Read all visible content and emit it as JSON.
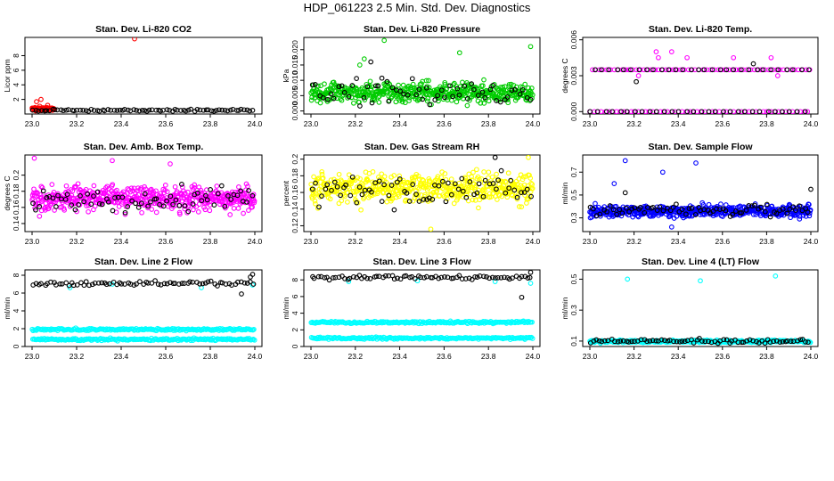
{
  "page": {
    "title": "HDP_061223  2.5 Min. Std. Dev. Diagnostics"
  },
  "chart_data": [
    {
      "id": "co2",
      "type": "scatter",
      "title": "Stan. Dev. Li-820 CO2",
      "xlabel": "",
      "ylabel": "Licor ppm",
      "xlim": [
        23.0,
        24.0
      ],
      "ylim": [
        0,
        10.5
      ],
      "xticks": [
        "23.0",
        "23.2",
        "23.4",
        "23.6",
        "23.8",
        "24.0"
      ],
      "yticks": [
        2,
        4,
        6,
        8
      ],
      "series": [
        {
          "name": "aux",
          "color": "#ff0000",
          "base": 0.7,
          "noise": 0.25,
          "n": 70,
          "x_end": 23.1,
          "outliers": [
            [
              23.46,
              10.3
            ],
            [
              23.02,
              1.7
            ],
            [
              23.04,
              2.0
            ],
            [
              23.07,
              1.2
            ]
          ]
        },
        {
          "name": "main",
          "color": "#000000",
          "base": 0.5,
          "noise": 0.15,
          "n": 80,
          "outliers": []
        }
      ]
    },
    {
      "id": "pressure",
      "type": "scatter",
      "title": "Stan. Dev. Li-820 Pressure",
      "xlabel": "",
      "ylabel": "kPa",
      "xlim": [
        23.0,
        24.0
      ],
      "ylim": [
        -0.001,
        0.024
      ],
      "xticks": [
        "23.0",
        "23.2",
        "23.4",
        "23.6",
        "23.8",
        "24.0"
      ],
      "yticks": [
        0.0,
        0.005,
        0.01,
        0.015,
        0.02
      ],
      "series": [
        {
          "name": "aux",
          "color": "#00cc00",
          "base": 0.006,
          "noise": 0.003,
          "n": 500,
          "outliers": [
            [
              23.33,
              0.023
            ],
            [
              23.67,
              0.019
            ],
            [
              23.99,
              0.021
            ],
            [
              23.22,
              0.015
            ],
            [
              23.24,
              0.017
            ]
          ]
        },
        {
          "name": "main",
          "color": "#000000",
          "base": 0.006,
          "noise": 0.004,
          "n": 60,
          "outliers": [
            [
              23.27,
              0.016
            ]
          ]
        }
      ]
    },
    {
      "id": "temp820",
      "type": "scatter",
      "title": "Stan. Dev. Li-820 Temp.",
      "xlabel": "",
      "ylabel": "degrees C",
      "xlim": [
        23.0,
        24.0
      ],
      "ylim": [
        -0.0002,
        0.0062
      ],
      "xticks": [
        "23.0",
        "23.2",
        "23.4",
        "23.6",
        "23.8",
        "24.0"
      ],
      "yticks": [
        0.0,
        0.003,
        0.006
      ],
      "series": [
        {
          "name": "aux",
          "color": "#ff00ff",
          "base": 0.0,
          "noise": 0.0,
          "n": 120,
          "levels": [
            0.0,
            0.0035
          ],
          "outliers": [
            [
              23.3,
              0.005
            ],
            [
              23.37,
              0.005
            ],
            [
              23.31,
              0.0045
            ],
            [
              23.44,
              0.0045
            ],
            [
              23.65,
              0.0045
            ],
            [
              23.82,
              0.0045
            ],
            [
              23.85,
              0.003
            ],
            [
              23.22,
              0.003
            ]
          ]
        },
        {
          "name": "main",
          "color": "#000000",
          "base": 0.0,
          "noise": 0.0,
          "n": 60,
          "levels": [
            0.0,
            0.0035
          ],
          "outliers": [
            [
              23.21,
              0.0025
            ],
            [
              23.74,
              0.004
            ]
          ]
        }
      ]
    },
    {
      "id": "ambbox",
      "type": "scatter",
      "title": "Stan. Dev. Amb. Box Temp.",
      "xlabel": "",
      "ylabel": "degrees C",
      "xlim": [
        23.0,
        24.0
      ],
      "ylim": [
        0.13,
        0.225
      ],
      "xticks": [
        "23.0",
        "23.2",
        "23.4",
        "23.6",
        "23.8",
        "24.0"
      ],
      "yticks": [
        0.14,
        0.16,
        0.18,
        0.2
      ],
      "series": [
        {
          "name": "aux",
          "color": "#ff00ff",
          "base": 0.171,
          "noise": 0.015,
          "n": 520,
          "outliers": [
            [
              23.01,
              0.221
            ],
            [
              23.36,
              0.218
            ],
            [
              23.62,
              0.214
            ]
          ]
        },
        {
          "name": "main",
          "color": "#000000",
          "base": 0.17,
          "noise": 0.014,
          "n": 70,
          "outliers": []
        }
      ]
    },
    {
      "id": "rh",
      "type": "scatter",
      "title": "Stan. Dev. Gas Stream RH",
      "xlabel": "",
      "ylabel": "percent",
      "xlim": [
        23.0,
        24.0
      ],
      "ylim": [
        0.113,
        0.205
      ],
      "xticks": [
        "23.0",
        "23.2",
        "23.4",
        "23.6",
        "23.8",
        "24.0"
      ],
      "yticks": [
        0.12,
        0.14,
        0.16,
        0.18,
        0.2
      ],
      "series": [
        {
          "name": "aux",
          "color": "#ffff00",
          "base": 0.165,
          "noise": 0.016,
          "n": 520,
          "outliers": [
            [
              23.98,
              0.202
            ],
            [
              23.54,
              0.116
            ]
          ]
        },
        {
          "name": "main",
          "color": "#000000",
          "base": 0.163,
          "noise": 0.016,
          "n": 70,
          "outliers": [
            [
              23.83,
              0.202
            ]
          ]
        }
      ]
    },
    {
      "id": "sampleflow",
      "type": "scatter",
      "title": "Stan. Dev. Sample Flow",
      "xlabel": "",
      "ylabel": "ml/min",
      "xlim": [
        23.0,
        24.0
      ],
      "ylim": [
        0.18,
        0.85
      ],
      "xticks": [
        "23.0",
        "23.2",
        "23.4",
        "23.6",
        "23.8",
        "24.0"
      ],
      "yticks": [
        0.3,
        0.5,
        0.7
      ],
      "series": [
        {
          "name": "aux",
          "color": "#0000ff",
          "base": 0.36,
          "noise": 0.045,
          "n": 520,
          "outliers": [
            [
              23.16,
              0.8
            ],
            [
              23.33,
              0.7
            ],
            [
              23.48,
              0.78
            ],
            [
              23.11,
              0.6
            ],
            [
              23.37,
              0.22
            ]
          ]
        },
        {
          "name": "main",
          "color": "#000000",
          "base": 0.37,
          "noise": 0.05,
          "n": 70,
          "outliers": [
            [
              23.16,
              0.52
            ],
            [
              24.0,
              0.55
            ]
          ]
        }
      ]
    },
    {
      "id": "line2",
      "type": "scatter",
      "title": "Stan. Dev. Line 2 Flow",
      "xlabel": "",
      "ylabel": "ml/min",
      "xlim": [
        23.0,
        24.0
      ],
      "ylim": [
        0,
        8.6
      ],
      "xticks": [
        "23.0",
        "23.2",
        "23.4",
        "23.6",
        "23.8",
        "24.0"
      ],
      "yticks": [
        0,
        2,
        4,
        6,
        8
      ],
      "series": [
        {
          "name": "aux",
          "color": "#00ffff",
          "base": 0.0,
          "noise": 0.12,
          "n": 420,
          "levels": [
            1.9,
            0.8
          ],
          "outliers": [
            [
              23.17,
              6.6
            ],
            [
              23.36,
              7.0
            ],
            [
              23.76,
              6.6
            ],
            [
              23.99,
              6.9
            ]
          ]
        },
        {
          "name": "main",
          "color": "#000000",
          "base": 7.1,
          "noise": 0.22,
          "n": 75,
          "outliers": [
            [
              23.94,
              5.9
            ],
            [
              23.98,
              7.8
            ],
            [
              23.99,
              8.1
            ]
          ]
        }
      ]
    },
    {
      "id": "line3",
      "type": "scatter",
      "title": "Stan. Dev. Line 3 Flow",
      "xlabel": "",
      "ylabel": "ml/min",
      "xlim": [
        23.0,
        24.0
      ],
      "ylim": [
        0,
        9.2
      ],
      "xticks": [
        "23.0",
        "23.2",
        "23.4",
        "23.6",
        "23.8",
        "24.0"
      ],
      "yticks": [
        0,
        2,
        4,
        6,
        8
      ],
      "series": [
        {
          "name": "aux",
          "color": "#00ffff",
          "base": 0.0,
          "noise": 0.12,
          "n": 420,
          "levels": [
            2.9,
            1.0
          ],
          "outliers": [
            [
              23.17,
              7.8
            ],
            [
              23.48,
              7.9
            ],
            [
              23.83,
              7.8
            ],
            [
              23.99,
              7.6
            ]
          ]
        },
        {
          "name": "main",
          "color": "#000000",
          "base": 8.3,
          "noise": 0.22,
          "n": 75,
          "outliers": [
            [
              23.95,
              5.9
            ],
            [
              23.99,
              8.9
            ]
          ]
        }
      ]
    },
    {
      "id": "line4",
      "type": "scatter",
      "title": "Stan. Dev. Line 4 (LT) Flow",
      "xlabel": "",
      "ylabel": "ml/min",
      "xlim": [
        23.0,
        24.0
      ],
      "ylim": [
        0.065,
        0.56
      ],
      "xticks": [
        "23.0",
        "23.2",
        "23.4",
        "23.6",
        "23.8",
        "24.0"
      ],
      "yticks": [
        0.1,
        0.3,
        0.5
      ],
      "series": [
        {
          "name": "aux",
          "color": "#00ffff",
          "base": 0.098,
          "noise": 0.008,
          "n": 420,
          "outliers": [
            [
              23.17,
              0.5
            ],
            [
              23.5,
              0.49
            ],
            [
              23.84,
              0.52
            ]
          ]
        },
        {
          "name": "main",
          "color": "#000000",
          "base": 0.1,
          "noise": 0.012,
          "n": 75,
          "outliers": []
        }
      ]
    }
  ]
}
